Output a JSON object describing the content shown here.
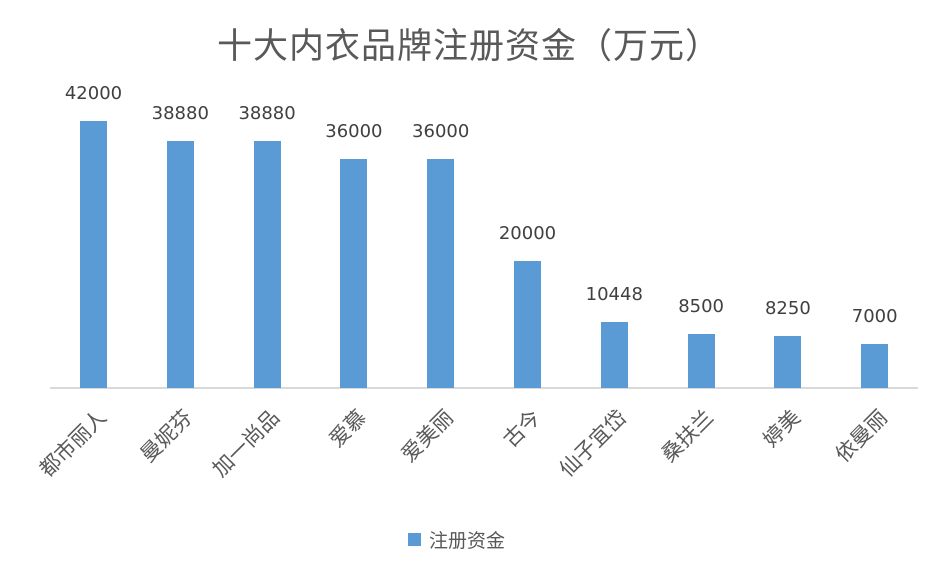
{
  "chart_data": {
    "type": "bar",
    "title": "十大内衣品牌注册资金（万元）",
    "categories": [
      "都市丽人",
      "曼妮芬",
      "加一尚品",
      "爱慕",
      "爱美丽",
      "古今",
      "仙子宜岱",
      "桑扶兰",
      "婷美",
      "依曼丽"
    ],
    "series": [
      {
        "name": "注册资金",
        "color": "#5b9bd5",
        "values": [
          42000,
          38880,
          38880,
          36000,
          36000,
          20000,
          10448,
          8500,
          8250,
          7000
        ]
      }
    ],
    "value_labels": [
      "42000",
      "38880",
      "38880",
      "36000",
      "36000",
      "20000",
      "10448",
      "8500",
      "8250",
      "7000"
    ],
    "xlabel": "",
    "ylabel": "",
    "ylim": [
      0,
      42000
    ],
    "grid": false,
    "y_axis_visible": false,
    "data_labels": true,
    "x_tick_rotation": -45,
    "legend": {
      "position": "bottom",
      "entries": [
        "注册资金"
      ]
    }
  },
  "title": "十大内衣品牌注册资金（万元）",
  "legend": {
    "label": "注册资金"
  }
}
